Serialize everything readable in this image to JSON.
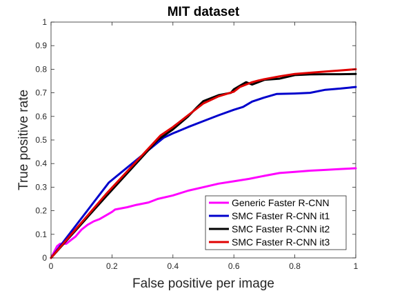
{
  "chart_data": {
    "type": "line",
    "title": "MIT dataset",
    "xlabel": "False positive per image",
    "ylabel": "True positive rate",
    "xlim": [
      0,
      1
    ],
    "ylim": [
      0,
      1
    ],
    "xticks": [
      "0",
      "0.2",
      "0.4",
      "0.6",
      "0.8",
      "1"
    ],
    "xtick_values": [
      0,
      0.2,
      0.4,
      0.6,
      0.8,
      1
    ],
    "yticks": [
      "0",
      "0.1",
      "0.2",
      "0.3",
      "0.4",
      "0.5",
      "0.6",
      "0.7",
      "0.8",
      "0.9",
      "1"
    ],
    "ytick_values": [
      0,
      0.1,
      0.2,
      0.3,
      0.4,
      0.5,
      0.6,
      0.7,
      0.8,
      0.9,
      1
    ],
    "grid": false,
    "legend_position": "bottom-right",
    "series": [
      {
        "name": "Generic Faster R-CNN",
        "color": "#ff00ff",
        "x": [
          0,
          0.02,
          0.03,
          0.05,
          0.07,
          0.08,
          0.1,
          0.12,
          0.14,
          0.16,
          0.18,
          0.2,
          0.21,
          0.25,
          0.28,
          0.32,
          0.35,
          0.4,
          0.45,
          0.5,
          0.55,
          0.6,
          0.65,
          0.7,
          0.75,
          0.8,
          0.85,
          0.9,
          0.95,
          1
        ],
        "y": [
          0,
          0.05,
          0.06,
          0.06,
          0.08,
          0.09,
          0.12,
          0.14,
          0.155,
          0.165,
          0.18,
          0.195,
          0.205,
          0.215,
          0.225,
          0.235,
          0.25,
          0.265,
          0.285,
          0.3,
          0.315,
          0.325,
          0.335,
          0.348,
          0.36,
          0.365,
          0.37,
          0.373,
          0.377,
          0.38
        ]
      },
      {
        "name": "SMC Faster R-CNN it1",
        "color": "#0000cc",
        "x": [
          0,
          0.19,
          0.37,
          0.4,
          0.45,
          0.5,
          0.55,
          0.6,
          0.63,
          0.66,
          0.7,
          0.74,
          0.8,
          0.85,
          0.9,
          0.95,
          1
        ],
        "y": [
          0,
          0.32,
          0.51,
          0.528,
          0.555,
          0.58,
          0.605,
          0.628,
          0.64,
          0.663,
          0.68,
          0.695,
          0.697,
          0.7,
          0.713,
          0.718,
          0.725
        ]
      },
      {
        "name": "SMC Faster R-CNN it2",
        "color": "#000000",
        "x": [
          0,
          0.18,
          0.35,
          0.4,
          0.45,
          0.48,
          0.5,
          0.55,
          0.59,
          0.6,
          0.62,
          0.64,
          0.66,
          0.68,
          0.7,
          0.75,
          0.8,
          0.85,
          0.9,
          0.95,
          1
        ],
        "y": [
          0,
          0.26,
          0.5,
          0.545,
          0.6,
          0.64,
          0.665,
          0.69,
          0.7,
          0.715,
          0.73,
          0.745,
          0.735,
          0.745,
          0.755,
          0.76,
          0.775,
          0.778,
          0.779,
          0.779,
          0.78
        ]
      },
      {
        "name": "SMC Faster R-CNN it3",
        "color": "#e00000",
        "x": [
          0,
          0.18,
          0.36,
          0.4,
          0.45,
          0.5,
          0.55,
          0.6,
          0.62,
          0.64,
          0.65,
          0.66,
          0.68,
          0.7,
          0.75,
          0.8,
          0.85,
          0.9,
          0.95,
          1
        ],
        "y": [
          0,
          0.27,
          0.52,
          0.555,
          0.605,
          0.655,
          0.685,
          0.705,
          0.725,
          0.735,
          0.74,
          0.745,
          0.752,
          0.758,
          0.77,
          0.78,
          0.785,
          0.79,
          0.795,
          0.8
        ]
      }
    ]
  }
}
